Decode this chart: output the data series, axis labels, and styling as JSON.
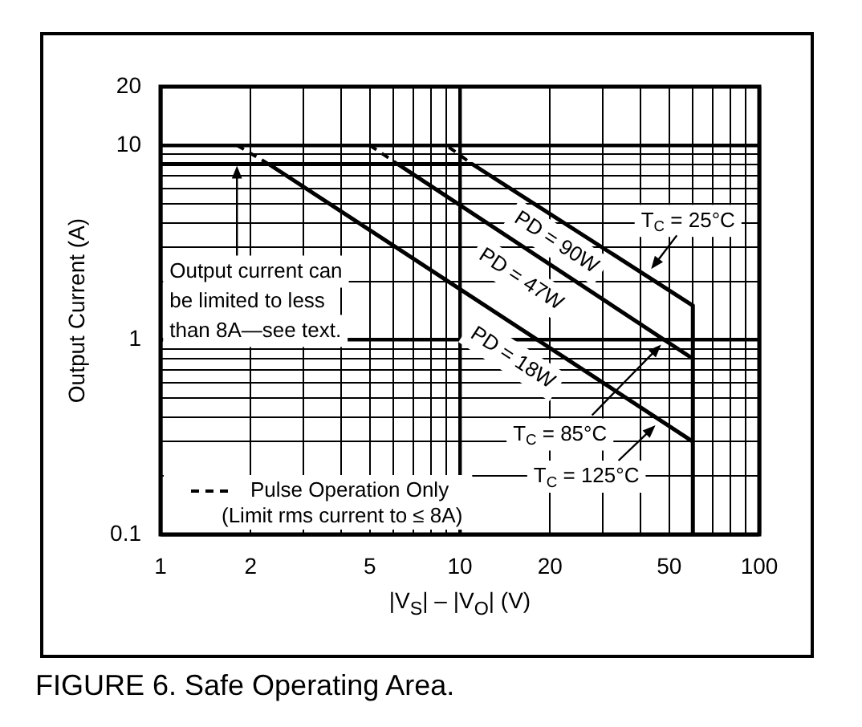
{
  "chart_data": {
    "type": "line",
    "title": "FIGURE 6. Safe Operating Area.",
    "xlabel": "|V$_{S}$| – |V$_{O}$| (V)",
    "ylabel": "Output Current (A)",
    "log": "xy",
    "xlim": [
      1,
      100
    ],
    "ylim": [
      0.1,
      20
    ],
    "xticks": [
      1,
      2,
      {
        "value": 3,
        "label": null
      },
      {
        "value": 4,
        "label": null
      },
      5,
      {
        "value": 6,
        "label": null
      },
      {
        "value": 7,
        "label": null
      },
      {
        "value": 8,
        "label": null
      },
      {
        "value": 9,
        "label": null
      },
      10,
      20,
      {
        "value": 30,
        "label": null
      },
      {
        "value": 40,
        "label": null
      },
      50,
      {
        "value": 60,
        "label": null
      },
      {
        "value": 70,
        "label": null
      },
      {
        "value": 80,
        "label": null
      },
      {
        "value": 90,
        "label": null
      },
      100
    ],
    "yticks": [
      0.1,
      {
        "value": 0.2,
        "label": null
      },
      {
        "value": 0.3,
        "label": null
      },
      {
        "value": 0.4,
        "label": null
      },
      {
        "value": 0.5,
        "label": null
      },
      {
        "value": 0.6,
        "label": null
      },
      {
        "value": 0.7,
        "label": null
      },
      {
        "value": 0.8,
        "label": null
      },
      {
        "value": 0.9,
        "label": null
      },
      1,
      {
        "value": 2,
        "label": null
      },
      {
        "value": 3,
        "label": null
      },
      {
        "value": 4,
        "label": null
      },
      {
        "value": 5,
        "label": null
      },
      {
        "value": 6,
        "label": null
      },
      {
        "value": 7,
        "label": null
      },
      {
        "value": 8,
        "label": null
      },
      {
        "value": 9,
        "label": null
      },
      10,
      20
    ],
    "grid": true,
    "marker": "none",
    "legend": "bottom left",
    "series": [
      {
        "x": [
          1,
          11,
          60,
          60
        ],
        "values": [
          8,
          8,
          1.5,
          0.1
        ],
        "color": "#000000"
      },
      {
        "x": [
          6.2,
          60
        ],
        "values": [
          8,
          0.8
        ],
        "color": "#000000"
      },
      {
        "x": [
          2.3,
          60
        ],
        "values": [
          8,
          0.3
        ],
        "color": "#000000"
      },
      {
        "name": "Pulse Operation Only",
        "x": [
          1,
          9,
          11,
          null,
          1.8,
          2.3,
          null,
          5,
          6.2
        ],
        "values": [
          10,
          10,
          8,
          null,
          10,
          8,
          null,
          10,
          8
        ],
        "color": "#000000",
        "line_style": "dashed"
      }
    ],
    "annotations": [
      {
        "text": "Output current can be limited to less than 8A—see text.",
        "x": 1.8,
        "y": 8
      },
      {
        "text": "PD = 90W",
        "x": 21,
        "y": 4.2
      },
      {
        "text": "PD = 47W",
        "x": 16,
        "y": 3.1
      },
      {
        "text": "PD = 18W",
        "x": 15,
        "y": 1.2
      },
      {
        "text": "T$_{C}$ = 25°C",
        "x": 43,
        "y": 2.1
      },
      {
        "text": "T$_{C}$ = 85°C",
        "x": 47,
        "y": 1
      },
      {
        "text": "T$_{C}$ = 125°C",
        "x": 45,
        "y": 0.4
      },
      "(Limit rms current to ≤ 8A)"
    ]
  }
}
